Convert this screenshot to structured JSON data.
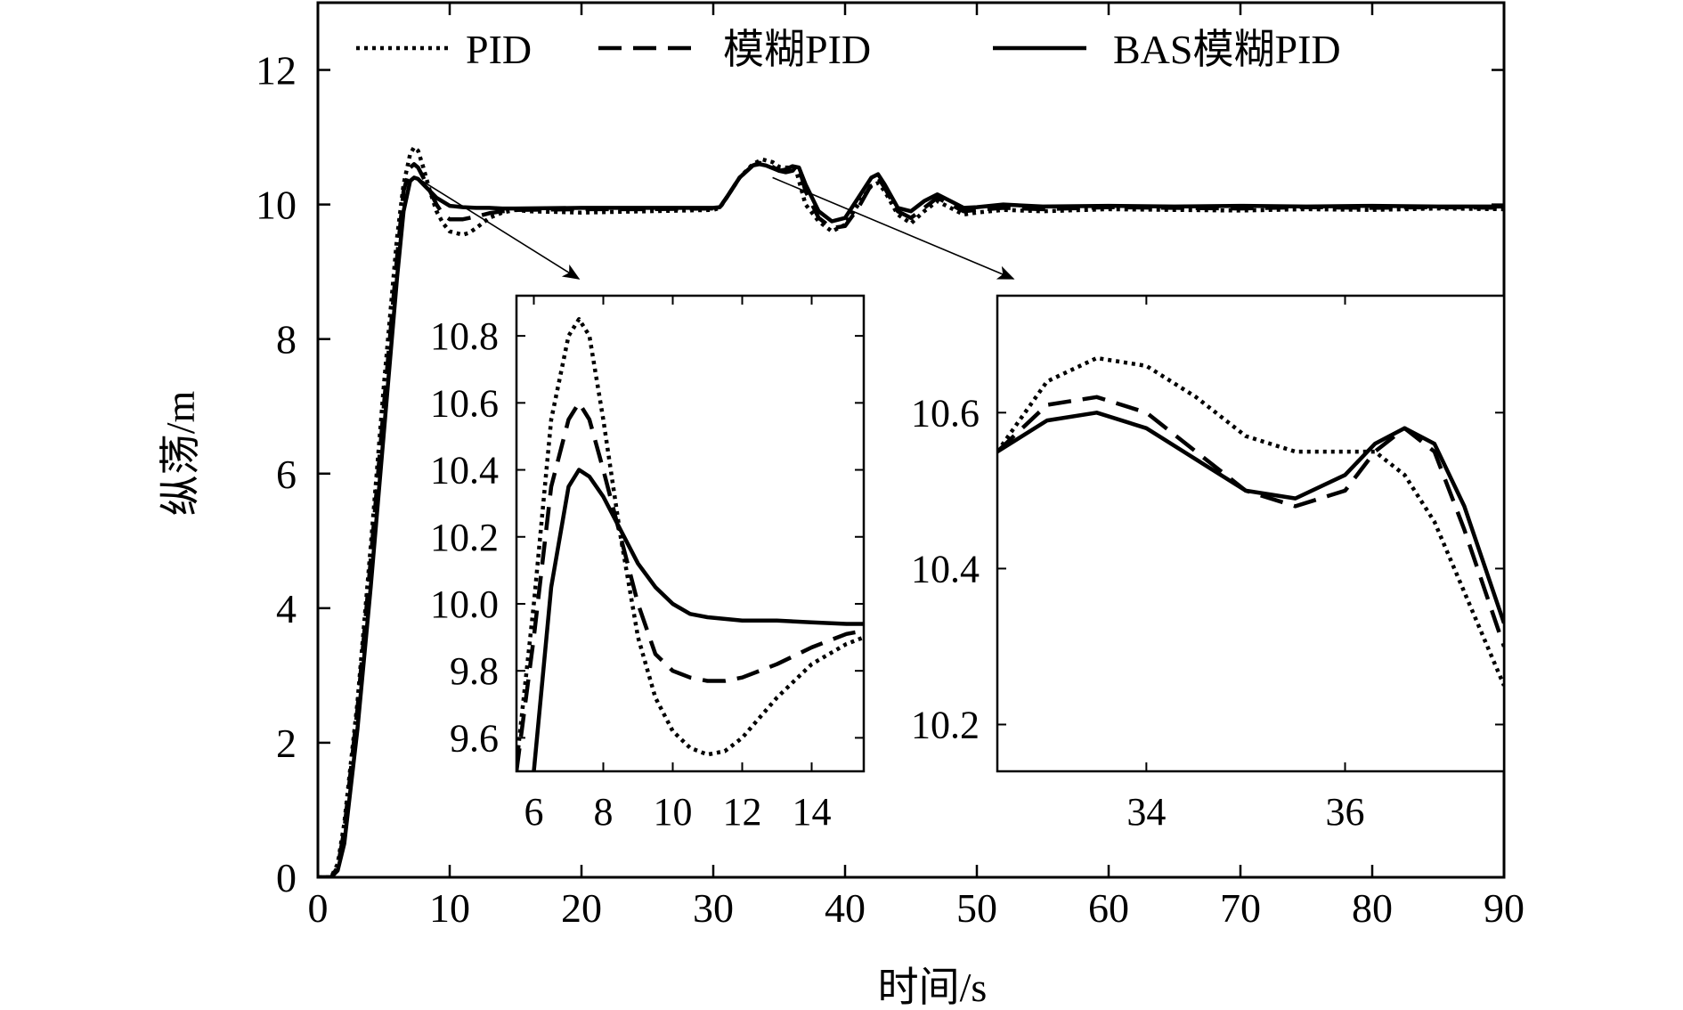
{
  "chart_data": {
    "type": "line",
    "title": "",
    "xlabel": "时间/s",
    "ylabel": "纵荡/m",
    "xlim": [
      0,
      90
    ],
    "ylim": [
      0,
      13
    ],
    "xticks": [
      0,
      10,
      20,
      30,
      40,
      50,
      60,
      70,
      80,
      90
    ],
    "yticks": [
      0,
      2,
      4,
      6,
      8,
      10,
      12
    ],
    "grid": false,
    "legend": {
      "position": "top",
      "orientation": "horizontal"
    },
    "series": [
      {
        "name": "PID",
        "style": "dotted",
        "color": "#000000",
        "x": [
          0,
          1,
          1.5,
          2,
          3,
          4,
          5,
          6,
          6.5,
          7,
          7.3,
          7.6,
          8,
          8.5,
          9,
          9.5,
          10,
          11,
          11.5,
          12,
          13,
          14,
          15,
          16,
          20,
          25,
          30,
          30.5,
          31,
          32,
          33,
          33.7,
          34.5,
          35,
          35.5,
          36,
          36.3,
          37,
          38,
          39,
          40,
          41,
          42,
          42.5,
          43,
          44,
          45,
          46,
          47,
          48,
          49,
          50,
          52,
          55,
          60,
          65,
          70,
          75,
          80,
          85,
          90
        ],
        "y": [
          0,
          0,
          0.2,
          0.8,
          2.6,
          4.9,
          7.3,
          9.5,
          10.3,
          10.75,
          10.85,
          10.8,
          10.55,
          10.2,
          9.9,
          9.72,
          9.6,
          9.55,
          9.58,
          9.65,
          9.8,
          9.88,
          9.92,
          9.9,
          9.88,
          9.9,
          9.92,
          9.95,
          10.1,
          10.4,
          10.6,
          10.67,
          10.63,
          10.56,
          10.55,
          10.55,
          10.5,
          10.0,
          9.75,
          9.6,
          9.7,
          10.0,
          10.28,
          10.32,
          10.2,
          9.85,
          9.72,
          9.9,
          10.05,
          9.95,
          9.85,
          9.88,
          9.92,
          9.9,
          9.93,
          9.92,
          9.91,
          9.93,
          9.92,
          9.94,
          9.93
        ]
      },
      {
        "name": "模糊PID",
        "style": "dashed",
        "color": "#000000",
        "x": [
          0,
          1,
          1.5,
          2,
          3,
          4,
          5,
          6,
          6.5,
          7,
          7.3,
          7.6,
          8,
          8.5,
          9,
          9.5,
          10,
          11,
          11.5,
          12,
          13,
          14,
          15,
          20,
          25,
          30,
          30.5,
          31,
          32,
          33,
          33.5,
          34.5,
          35,
          35.5,
          36,
          36.5,
          37,
          38,
          39,
          40,
          41,
          42,
          42.5,
          43,
          44,
          45,
          46,
          47,
          48,
          49,
          50,
          52,
          55,
          60,
          65,
          70,
          75,
          80,
          85,
          90
        ],
        "y": [
          0,
          0,
          0.15,
          0.7,
          2.5,
          4.7,
          7.0,
          9.2,
          10.2,
          10.55,
          10.6,
          10.55,
          10.4,
          10.2,
          10.0,
          9.85,
          9.78,
          9.78,
          9.8,
          9.82,
          9.87,
          9.9,
          9.92,
          9.93,
          9.93,
          9.94,
          9.96,
          10.1,
          10.4,
          10.58,
          10.62,
          10.56,
          10.5,
          10.48,
          10.5,
          10.55,
          10.2,
          9.8,
          9.65,
          9.68,
          9.95,
          10.3,
          10.4,
          10.25,
          9.9,
          9.8,
          9.95,
          10.1,
          10.0,
          9.9,
          9.92,
          9.95,
          9.93,
          9.96,
          9.95,
          9.94,
          9.96,
          9.95,
          9.96,
          9.95
        ]
      },
      {
        "name": "BAS模糊PID",
        "style": "solid",
        "color": "#000000",
        "x": [
          0,
          1,
          1.5,
          2,
          3,
          4,
          5,
          6,
          6.5,
          7,
          7.3,
          7.6,
          8,
          8.5,
          9,
          10,
          11,
          12,
          13,
          14,
          15,
          20,
          25,
          30,
          30.5,
          31,
          32,
          33,
          33.5,
          34,
          35,
          35.5,
          36,
          36.5,
          37,
          38,
          39,
          40,
          41,
          42,
          42.5,
          43,
          44,
          45,
          46,
          47,
          48,
          49,
          50,
          52,
          55,
          60,
          65,
          70,
          75,
          80,
          85,
          90
        ],
        "y": [
          0,
          0,
          0.1,
          0.5,
          2.2,
          4.3,
          6.6,
          8.9,
          9.9,
          10.35,
          10.4,
          10.38,
          10.3,
          10.2,
          10.1,
          9.98,
          9.96,
          9.95,
          9.95,
          9.94,
          9.94,
          9.95,
          9.95,
          9.95,
          9.96,
          10.1,
          10.4,
          10.58,
          10.6,
          10.58,
          10.5,
          10.52,
          10.57,
          10.55,
          10.3,
          9.9,
          9.75,
          9.8,
          10.1,
          10.4,
          10.45,
          10.3,
          9.95,
          9.9,
          10.05,
          10.15,
          10.05,
          9.95,
          9.96,
          10.0,
          9.97,
          9.98,
          9.97,
          9.98,
          9.97,
          9.98,
          9.97,
          9.97
        ]
      }
    ],
    "insets": [
      {
        "xlim": [
          5.5,
          15.5
        ],
        "ylim": [
          9.5,
          10.92
        ],
        "xticks": [
          6,
          8,
          10,
          12,
          14
        ],
        "ytick_labels": [
          "9.6",
          "9.8",
          "10.0",
          "10.2",
          "10.4",
          "10.6",
          "10.8"
        ],
        "pointer_from_x": 7.5,
        "series": [
          {
            "name": "PID",
            "style": "dotted",
            "x": [
              5.5,
              6,
              6.5,
              7,
              7.3,
              7.6,
              8,
              8.5,
              9,
              9.5,
              10,
              10.5,
              11,
              11.5,
              12,
              12.5,
              13,
              14,
              15,
              15.5
            ],
            "y": [
              9.52,
              10.0,
              10.55,
              10.8,
              10.85,
              10.8,
              10.55,
              10.2,
              9.9,
              9.72,
              9.62,
              9.57,
              9.55,
              9.56,
              9.6,
              9.66,
              9.72,
              9.82,
              9.88,
              9.9
            ]
          },
          {
            "name": "模糊PID",
            "style": "dashed",
            "x": [
              5.5,
              6,
              6.5,
              7,
              7.3,
              7.6,
              8,
              8.5,
              9,
              9.5,
              10,
              10.5,
              11,
              11.5,
              12,
              13,
              14,
              15,
              15.5
            ],
            "y": [
              9.5,
              9.9,
              10.35,
              10.55,
              10.6,
              10.55,
              10.4,
              10.2,
              10.0,
              9.85,
              9.8,
              9.78,
              9.77,
              9.77,
              9.78,
              9.82,
              9.87,
              9.91,
              9.92
            ]
          },
          {
            "name": "BAS模糊PID",
            "style": "solid",
            "x": [
              6,
              6.5,
              7,
              7.3,
              7.6,
              8,
              8.5,
              9,
              9.5,
              10,
              10.5,
              11,
              11.5,
              12,
              13,
              14,
              15,
              15.5
            ],
            "y": [
              9.5,
              10.05,
              10.35,
              10.4,
              10.38,
              10.32,
              10.22,
              10.12,
              10.05,
              10.0,
              9.97,
              9.96,
              9.955,
              9.95,
              9.95,
              9.945,
              9.94,
              9.94
            ]
          }
        ]
      },
      {
        "xlim": [
          32.5,
          37.6
        ],
        "ylim": [
          10.14,
          10.75
        ],
        "xticks": [
          34,
          36
        ],
        "ytick_labels": [
          "10.2",
          "10.4",
          "10.6"
        ],
        "pointer_from_x": 34.5,
        "series": [
          {
            "name": "PID",
            "style": "dotted",
            "x": [
              32.5,
              33,
              33.5,
              34,
              34.5,
              35,
              35.5,
              36,
              36.3,
              36.6,
              36.9,
              37.2,
              37.6
            ],
            "y": [
              10.55,
              10.64,
              10.67,
              10.66,
              10.62,
              10.57,
              10.55,
              10.55,
              10.55,
              10.52,
              10.46,
              10.37,
              10.25
            ]
          },
          {
            "name": "模糊PID",
            "style": "dashed",
            "x": [
              32.5,
              33,
              33.5,
              34,
              34.5,
              35,
              35.5,
              36,
              36.3,
              36.6,
              36.9,
              37.2,
              37.6
            ],
            "y": [
              10.55,
              10.61,
              10.62,
              10.6,
              10.55,
              10.5,
              10.48,
              10.5,
              10.55,
              10.58,
              10.55,
              10.45,
              10.3
            ]
          },
          {
            "name": "BAS模糊PID",
            "style": "solid",
            "x": [
              32.5,
              33,
              33.5,
              34,
              34.5,
              35,
              35.5,
              36,
              36.3,
              36.6,
              36.9,
              37.2,
              37.6
            ],
            "y": [
              10.55,
              10.59,
              10.6,
              10.58,
              10.54,
              10.5,
              10.49,
              10.52,
              10.56,
              10.58,
              10.56,
              10.48,
              10.33
            ]
          }
        ]
      }
    ]
  }
}
